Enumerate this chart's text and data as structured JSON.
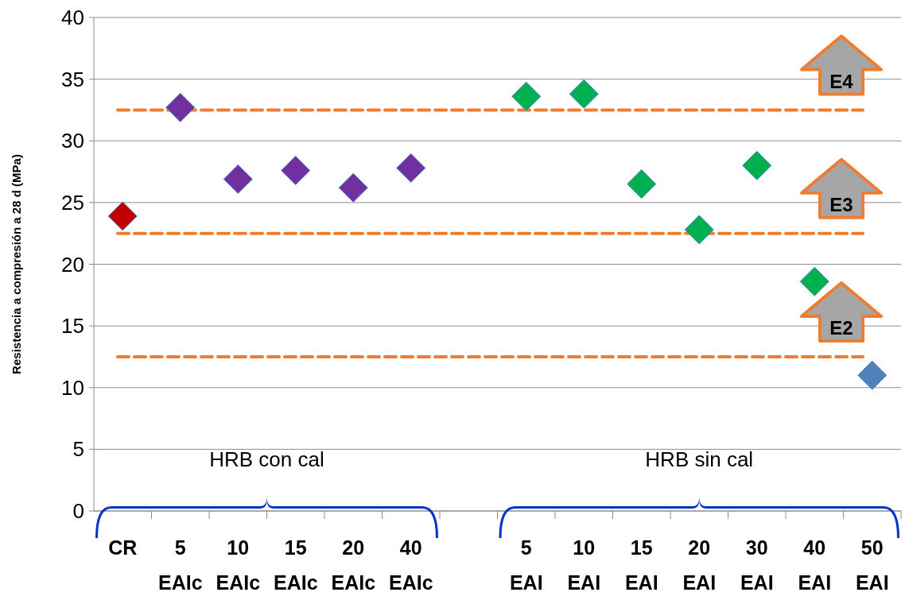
{
  "chart_data": {
    "type": "scatter",
    "ylabel": "Resistencia a compresión a 28 d (MPa)",
    "categories": [
      "CR",
      "5 EAIc",
      "10 EAIc",
      "15 EAIc",
      "20 EAIc",
      "40 EAIc",
      null,
      "5 EAI",
      "10 EAI",
      "15 EAI",
      "20 EAI",
      "30 EAI",
      "40 EAI",
      "50 EAI"
    ],
    "series": [
      {
        "values": [
          23.9,
          32.7,
          26.9,
          27.6,
          26.2,
          27.8,
          null,
          33.6,
          33.8,
          26.5,
          22.8,
          28.0,
          18.6,
          11.0
        ],
        "colors": [
          "#c00000",
          "#7030a0",
          "#7030a0",
          "#7030a0",
          "#7030a0",
          "#7030a0",
          null,
          "#00b050",
          "#00b050",
          "#00b050",
          "#00b050",
          "#00b050",
          "#00b050",
          "#4f81bd"
        ]
      }
    ],
    "ylim": [
      0,
      40
    ],
    "yticks": [
      0,
      5,
      10,
      15,
      20,
      25,
      30,
      35,
      40
    ],
    "grid": "y",
    "marker": "diamond",
    "ref_lines": [
      {
        "axis": "y",
        "value": 32.5,
        "label": "E4",
        "color": "#ed7d31",
        "line_style": "dashed"
      },
      {
        "axis": "y",
        "value": 22.5,
        "label": "E3",
        "color": "#ed7d31",
        "line_style": "dashed"
      },
      {
        "axis": "y",
        "value": 12.5,
        "label": "E2",
        "color": "#ed7d31",
        "line_style": "dashed"
      }
    ],
    "annotations": [
      "HRB con cal",
      "HRB sin cal"
    ]
  }
}
